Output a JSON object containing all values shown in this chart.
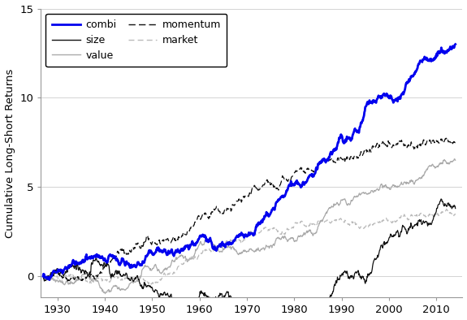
{
  "title": "",
  "ylabel": "Cumulative Long-Short Returns",
  "xlabel": "",
  "xlim": [
    1926.5,
    2015.5
  ],
  "ylim": [
    -1.2,
    15
  ],
  "yticks": [
    0,
    5,
    10,
    15
  ],
  "xticks": [
    1930,
    1940,
    1950,
    1960,
    1970,
    1980,
    1990,
    2000,
    2010
  ],
  "start_year": 1927,
  "end_year": 2014,
  "series": {
    "combi": {
      "color": "#0000ee",
      "lw": 2.0,
      "ls": "solid"
    },
    "size": {
      "color": "#111111",
      "lw": 0.9,
      "ls": "solid"
    },
    "value": {
      "color": "#aaaaaa",
      "lw": 0.9,
      "ls": "solid"
    },
    "momentum": {
      "color": "#111111",
      "lw": 0.9,
      "ls": "dashed"
    },
    "market": {
      "color": "#bbbbbb",
      "lw": 0.9,
      "ls": "dashed"
    }
  },
  "legend_order": [
    [
      "combi",
      "size"
    ],
    [
      "value",
      "momentum"
    ],
    [
      "market"
    ]
  ],
  "grid_color": "#cccccc",
  "bg_color": "#ffffff"
}
